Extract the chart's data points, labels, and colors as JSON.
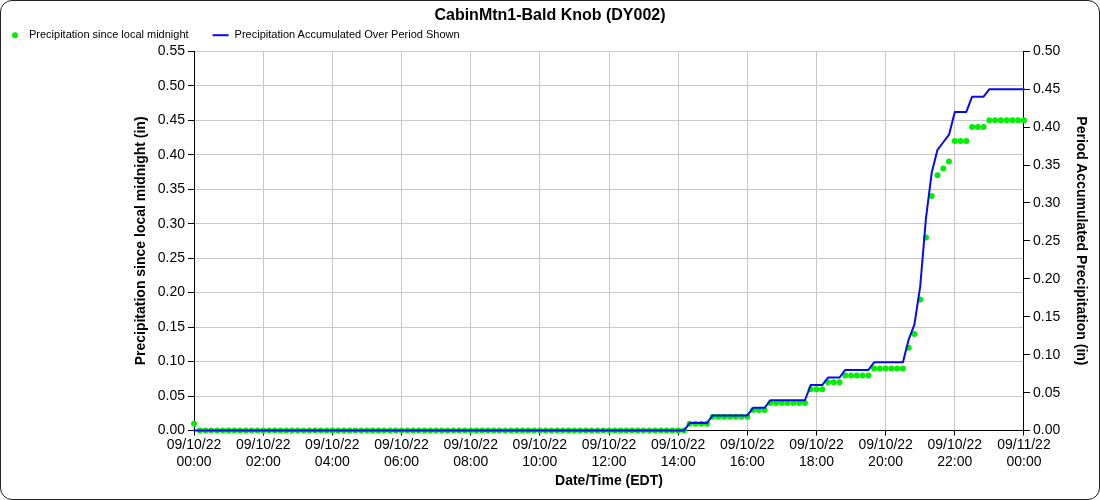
{
  "chart_data": {
    "type": "line",
    "title": "CabinMtn1-Bald Knob (DY002)",
    "xlabel": "Date/Time (EDT)",
    "ylabel": "Precipitation since local midnight (in)",
    "y2label": "Period Accumulated Precipitation (in)",
    "x": [
      "--09-10T00:00",
      "--09-10T00:10",
      "--09-10T00:20",
      "--09-10T00:30",
      "--09-10T00:40",
      "--09-10T00:50",
      "--09-10T01:00",
      "--09-10T01:10",
      "--09-10T01:20",
      "--09-10T01:30",
      "--09-10T01:40",
      "--09-10T01:50",
      "--09-10T02:00",
      "--09-10T02:10",
      "--09-10T02:20",
      "--09-10T02:30",
      "--09-10T02:40",
      "--09-10T02:50",
      "--09-10T03:00",
      "--09-10T03:10",
      "--09-10T03:20",
      "--09-10T03:30",
      "--09-10T03:40",
      "--09-10T03:50",
      "--09-10T04:00",
      "--09-10T04:10",
      "--09-10T04:20",
      "--09-10T04:30",
      "--09-10T04:40",
      "--09-10T04:50",
      "--09-10T05:00",
      "--09-10T05:10",
      "--09-10T05:20",
      "--09-10T05:30",
      "--09-10T05:40",
      "--09-10T05:50",
      "--09-10T06:00",
      "--09-10T06:10",
      "--09-10T06:20",
      "--09-10T06:30",
      "--09-10T06:40",
      "--09-10T06:50",
      "--09-10T07:00",
      "--09-10T07:10",
      "--09-10T07:20",
      "--09-10T07:30",
      "--09-10T07:40",
      "--09-10T07:50",
      "--09-10T08:00",
      "--09-10T08:10",
      "--09-10T08:20",
      "--09-10T08:30",
      "--09-10T08:40",
      "--09-10T08:50",
      "--09-10T09:00",
      "--09-10T09:10",
      "--09-10T09:20",
      "--09-10T09:30",
      "--09-10T09:40",
      "--09-10T09:50",
      "--09-10T10:00",
      "--09-10T10:10",
      "--09-10T10:20",
      "--09-10T10:30",
      "--09-10T10:40",
      "--09-10T10:50",
      "--09-10T11:00",
      "--09-10T11:10",
      "--09-10T11:20",
      "--09-10T11:30",
      "--09-10T11:40",
      "--09-10T11:50",
      "--09-10T12:00",
      "--09-10T12:10",
      "--09-10T12:20",
      "--09-10T12:30",
      "--09-10T12:40",
      "--09-10T12:50",
      "--09-10T13:00",
      "--09-10T13:10",
      "--09-10T13:20",
      "--09-10T13:30",
      "--09-10T13:40",
      "--09-10T13:50",
      "--09-10T14:00",
      "--09-10T14:10",
      "--09-10T14:20",
      "--09-10T14:30",
      "--09-10T14:40",
      "--09-10T14:50",
      "--09-10T15:00",
      "--09-10T15:10",
      "--09-10T15:20",
      "--09-10T15:30",
      "--09-10T15:40",
      "--09-10T15:50",
      "--09-10T16:00",
      "--09-10T16:10",
      "--09-10T16:20",
      "--09-10T16:30",
      "--09-10T16:40",
      "--09-10T16:50",
      "--09-10T17:00",
      "--09-10T17:10",
      "--09-10T17:20",
      "--09-10T17:30",
      "--09-10T17:40",
      "--09-10T17:50",
      "--09-10T18:00",
      "--09-10T18:10",
      "--09-10T18:20",
      "--09-10T18:30",
      "--09-10T18:40",
      "--09-10T18:50",
      "--09-10T19:00",
      "--09-10T19:10",
      "--09-10T19:20",
      "--09-10T19:30",
      "--09-10T19:40",
      "--09-10T19:50",
      "--09-10T20:00",
      "--09-10T20:10",
      "--09-10T20:20",
      "--09-10T20:30",
      "--09-10T20:40",
      "--09-10T20:50",
      "--09-10T21:00",
      "--09-10T21:10",
      "--09-10T21:20",
      "--09-10T21:30",
      "--09-10T21:40",
      "--09-10T21:50",
      "--09-10T22:00",
      "--09-10T22:10",
      "--09-10T22:20",
      "--09-10T22:30",
      "--09-10T22:40",
      "--09-10T22:50",
      "--09-10T23:00",
      "--09-10T23:10",
      "--09-10T23:20",
      "--09-10T23:30",
      "--09-10T23:40",
      "--09-10T23:50",
      "--09-11T00:00"
    ],
    "series": [
      {
        "name": "Precipitation since local midnight",
        "type": "scatter",
        "marker": "circle",
        "color": "#00ee00",
        "values": [
          0.01,
          0,
          0,
          0,
          0,
          0,
          0,
          0,
          0,
          0,
          0,
          0,
          0,
          0,
          0,
          0,
          0,
          0,
          0,
          0,
          0,
          0,
          0,
          0,
          0,
          0,
          0,
          0,
          0,
          0,
          0,
          0,
          0,
          0,
          0,
          0,
          0,
          0,
          0,
          0,
          0,
          0,
          0,
          0,
          0,
          0,
          0,
          0,
          0,
          0,
          0,
          0,
          0,
          0,
          0,
          0,
          0,
          0,
          0,
          0,
          0,
          0,
          0,
          0,
          0,
          0,
          0,
          0,
          0,
          0,
          0,
          0,
          0,
          0,
          0,
          0,
          0,
          0,
          0,
          0,
          0,
          0,
          0,
          0,
          0,
          0,
          0.01,
          0.01,
          0.01,
          0.01,
          0.02,
          0.02,
          0.02,
          0.02,
          0.02,
          0.02,
          0.02,
          0.03,
          0.03,
          0.03,
          0.04,
          0.04,
          0.04,
          0.04,
          0.04,
          0.04,
          0.04,
          0.06,
          0.06,
          0.06,
          0.07,
          0.07,
          0.07,
          0.08,
          0.08,
          0.08,
          0.08,
          0.08,
          0.09,
          0.09,
          0.09,
          0.09,
          0.09,
          0.09,
          0.12,
          0.14,
          0.19,
          0.28,
          0.34,
          0.37,
          0.38,
          0.39,
          0.42,
          0.42,
          0.42,
          0.44,
          0.44,
          0.44,
          0.45,
          0.45,
          0.45,
          0.45,
          0.45,
          0.45,
          0.45
        ]
      },
      {
        "name": "Precipitation Accumulated Over Period Shown",
        "marker": "none",
        "line_style": "solid",
        "axis": "y2",
        "color": "#0a0aee",
        "values": [
          0,
          0,
          0,
          0,
          0,
          0,
          0,
          0,
          0,
          0,
          0,
          0,
          0,
          0,
          0,
          0,
          0,
          0,
          0,
          0,
          0,
          0,
          0,
          0,
          0,
          0,
          0,
          0,
          0,
          0,
          0,
          0,
          0,
          0,
          0,
          0,
          0,
          0,
          0,
          0,
          0,
          0,
          0,
          0,
          0,
          0,
          0,
          0,
          0,
          0,
          0,
          0,
          0,
          0,
          0,
          0,
          0,
          0,
          0,
          0,
          0,
          0,
          0,
          0,
          0,
          0,
          0,
          0,
          0,
          0,
          0,
          0,
          0,
          0,
          0,
          0,
          0,
          0,
          0,
          0,
          0,
          0,
          0,
          0,
          0,
          0,
          0.01,
          0.01,
          0.01,
          0.01,
          0.02,
          0.02,
          0.02,
          0.02,
          0.02,
          0.02,
          0.02,
          0.03,
          0.03,
          0.03,
          0.04,
          0.04,
          0.04,
          0.04,
          0.04,
          0.04,
          0.04,
          0.06,
          0.06,
          0.06,
          0.07,
          0.07,
          0.07,
          0.08,
          0.08,
          0.08,
          0.08,
          0.08,
          0.09,
          0.09,
          0.09,
          0.09,
          0.09,
          0.09,
          0.12,
          0.14,
          0.19,
          0.28,
          0.34,
          0.37,
          0.38,
          0.39,
          0.42,
          0.42,
          0.42,
          0.44,
          0.44,
          0.44,
          0.45,
          0.45,
          0.45,
          0.45,
          0.45,
          0.45,
          0.45
        ]
      }
    ],
    "xlim": [
      "--09-10T00:00",
      "--09-11T00:00"
    ],
    "xticks": [
      {
        "value": "--09-10T00:00",
        "label": "09/10/22 00:00"
      },
      {
        "value": "--09-10T02:00",
        "label": "09/10/22 02:00"
      },
      {
        "value": "--09-10T04:00",
        "label": "09/10/22 04:00"
      },
      {
        "value": "--09-10T06:00",
        "label": "09/10/22 06:00"
      },
      {
        "value": "--09-10T08:00",
        "label": "09/10/22 08:00"
      },
      {
        "value": "--09-10T10:00",
        "label": "09/10/22 10:00"
      },
      {
        "value": "--09-10T12:00",
        "label": "09/10/22 12:00"
      },
      {
        "value": "--09-10T14:00",
        "label": "09/10/22 14:00"
      },
      {
        "value": "--09-10T16:00",
        "label": "09/10/22 16:00"
      },
      {
        "value": "--09-10T18:00",
        "label": "09/10/22 18:00"
      },
      {
        "value": "--09-10T20:00",
        "label": "09/10/22 20:00"
      },
      {
        "value": "--09-10T22:00",
        "label": "09/10/22 22:00"
      },
      {
        "value": "--09-11T00:00",
        "label": "09/11/22 00:00"
      }
    ],
    "ylim": [
      0,
      0.55
    ],
    "yticks": [
      {
        "value": 0,
        "label": "0.00"
      },
      {
        "value": 0.05,
        "label": "0.05"
      },
      {
        "value": 0.1,
        "label": "0.10"
      },
      {
        "value": 0.15,
        "label": "0.15"
      },
      {
        "value": 0.2,
        "label": "0.20"
      },
      {
        "value": 0.25,
        "label": "0.25"
      },
      {
        "value": 0.3,
        "label": "0.30"
      },
      {
        "value": 0.35,
        "label": "0.35"
      },
      {
        "value": 0.4,
        "label": "0.40"
      },
      {
        "value": 0.45,
        "label": "0.45"
      },
      {
        "value": 0.5,
        "label": "0.50"
      },
      {
        "value": 0.55,
        "label": "0.55"
      }
    ],
    "y2lim": [
      0,
      0.5
    ],
    "y2ticks": [
      {
        "value": 0,
        "label": "0.00"
      },
      {
        "value": 0.05,
        "label": "0.05"
      },
      {
        "value": 0.1,
        "label": "0.10"
      },
      {
        "value": 0.15,
        "label": "0.15"
      },
      {
        "value": 0.2,
        "label": "0.20"
      },
      {
        "value": 0.25,
        "label": "0.25"
      },
      {
        "value": 0.3,
        "label": "0.30"
      },
      {
        "value": 0.35,
        "label": "0.35"
      },
      {
        "value": 0.4,
        "label": "0.40"
      },
      {
        "value": 0.45,
        "label": "0.45"
      },
      {
        "value": 0.5,
        "label": "0.50"
      }
    ],
    "grid": true,
    "legend": "top left"
  }
}
